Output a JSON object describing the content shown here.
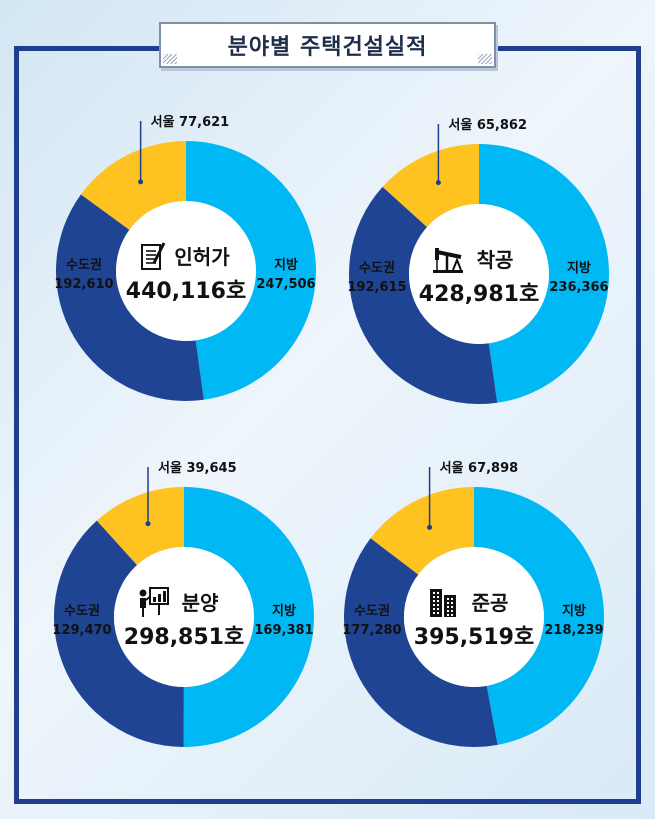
{
  "title": "분야별 주택건설실적",
  "colors": {
    "seoul": "#fec321",
    "capital": "#1f4494",
    "local": "#00b8f3",
    "frame": "#1d3f8d"
  },
  "chart_data": [
    {
      "type": "pie",
      "icon": "document-icon",
      "title": "인허가",
      "total": "440,116호",
      "slices": [
        {
          "name": "서울",
          "label": "서울 77,621",
          "value": 77621
        },
        {
          "name": "지방",
          "label": "지방",
          "value_text": "247,506",
          "value": 247506
        },
        {
          "name": "수도권",
          "label": "수도권",
          "value_text": "192,610",
          "value": 192610
        }
      ]
    },
    {
      "type": "pie",
      "icon": "oil-pump-icon",
      "title": "착공",
      "total": "428,981호",
      "slices": [
        {
          "name": "서울",
          "label": "서울 65,862",
          "value": 65862
        },
        {
          "name": "지방",
          "label": "지방",
          "value_text": "236,366",
          "value": 236366
        },
        {
          "name": "수도권",
          "label": "수도권",
          "value_text": "192,615",
          "value": 192615
        }
      ]
    },
    {
      "type": "pie",
      "icon": "presentation-icon",
      "title": "분양",
      "total": "298,851호",
      "slices": [
        {
          "name": "서울",
          "label": "서울 39,645",
          "value": 39645
        },
        {
          "name": "지방",
          "label": "지방",
          "value_text": "169,381",
          "value": 169381
        },
        {
          "name": "수도권",
          "label": "수도권",
          "value_text": "129,470",
          "value": 129470
        }
      ]
    },
    {
      "type": "pie",
      "icon": "buildings-icon",
      "title": "준공",
      "total": "395,519호",
      "slices": [
        {
          "name": "서울",
          "label": "서울 67,898",
          "value": 67898
        },
        {
          "name": "지방",
          "label": "지방",
          "value_text": "218,239",
          "value": 218239
        },
        {
          "name": "수도권",
          "label": "수도권",
          "value_text": "177,280",
          "value": 177280
        }
      ]
    }
  ]
}
